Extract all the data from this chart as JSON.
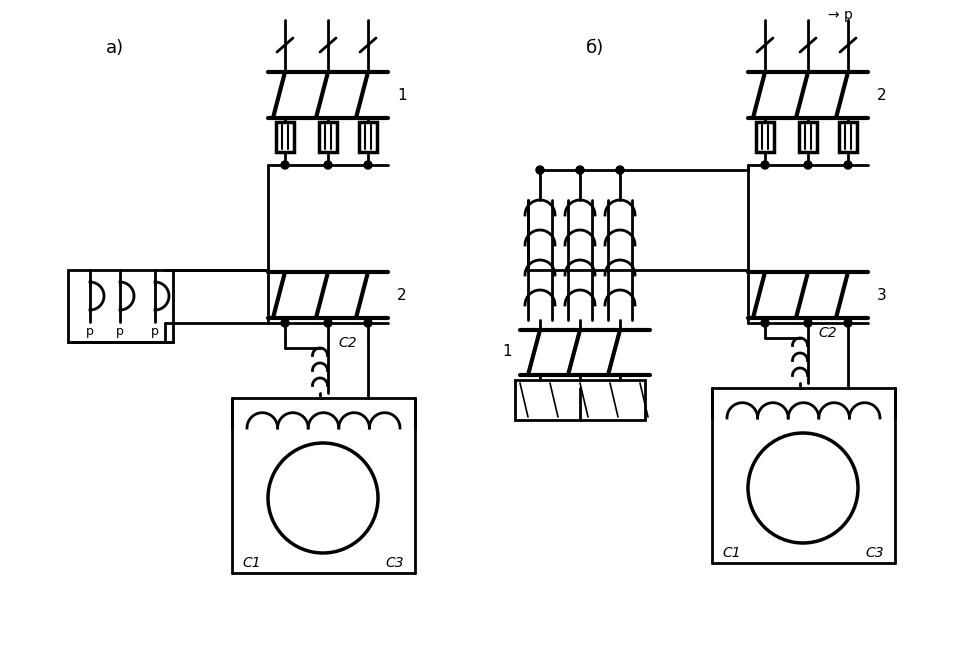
{
  "bg_color": "#ffffff",
  "line_color": "#000000",
  "lw": 2.0,
  "lw_thick": 2.5,
  "label_a": "a)",
  "label_b": "б)",
  "label_1_a": "1",
  "label_2_a": "2",
  "label_2_b": "2",
  "label_3_b": "3",
  "label_1_b": "1",
  "label_C1": "C1",
  "label_C2": "C2",
  "label_C3": "C3",
  "label_P": "p",
  "top_text": "→ p"
}
